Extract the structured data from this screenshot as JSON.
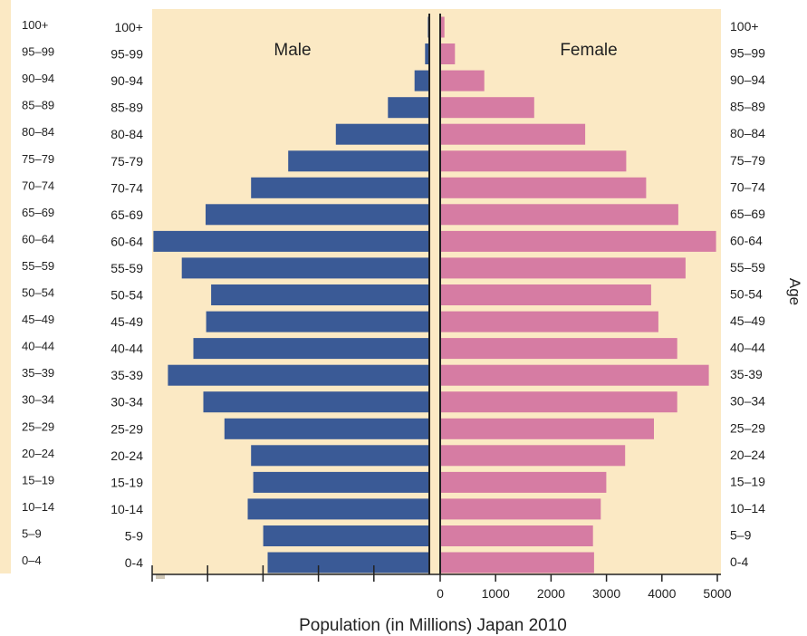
{
  "chart_data": {
    "type": "bar",
    "orientation": "horizontal",
    "subtype": "population-pyramid",
    "xlabel": "Population (in Millions) Japan 2010",
    "ylabel": "Age",
    "categories": [
      "0-4",
      "5-9",
      "10-14",
      "15-19",
      "20-24",
      "25-29",
      "30-34",
      "35-39",
      "40-44",
      "45-49",
      "50-54",
      "55-59",
      "60-64",
      "65-69",
      "70-74",
      "75-79",
      "80-84",
      "85-89",
      "90-94",
      "95-99",
      "100+"
    ],
    "left_partial_labels": [
      "0–4",
      "5–9",
      "10–14",
      "15–19",
      "20–24",
      "25–29",
      "30–34",
      "35–39",
      "40–44",
      "45–49",
      "50–54",
      "55–59",
      "60–64",
      "65–69",
      "70–74",
      "75–79",
      "80–84",
      "85–89",
      "90–94",
      "95–99",
      "100+"
    ],
    "right_labels": [
      "0-4",
      "5–9",
      "10–14",
      "15–19",
      "20–24",
      "25–29",
      "30–34",
      "35-39",
      "40–44",
      "45–49",
      "50-54",
      "55–59",
      "60-64",
      "65–69",
      "70–74",
      "75–79",
      "80–84",
      "85–89",
      "90–94",
      "95–99",
      "100+"
    ],
    "series": [
      {
        "name": "Male",
        "color": "#3a5a96",
        "values": [
          2900,
          2980,
          3260,
          3160,
          3200,
          3680,
          4060,
          4700,
          4240,
          4010,
          3920,
          4450,
          4960,
          4020,
          3200,
          2530,
          1670,
          730,
          250,
          60,
          10
        ]
      },
      {
        "name": "Female",
        "color": "#d67ca3",
        "values": [
          2760,
          2740,
          2880,
          2980,
          3320,
          3840,
          4260,
          4830,
          4260,
          3920,
          3790,
          4410,
          4960,
          4280,
          3700,
          3340,
          2600,
          1680,
          780,
          250,
          60
        ]
      }
    ],
    "xlim": [
      0,
      5000
    ],
    "xticks": [
      0,
      1000,
      2000,
      3000,
      4000,
      5000
    ],
    "legend": "top",
    "grid": false
  },
  "colors": {
    "background": "#fbe9c4",
    "axis": "#222222"
  }
}
